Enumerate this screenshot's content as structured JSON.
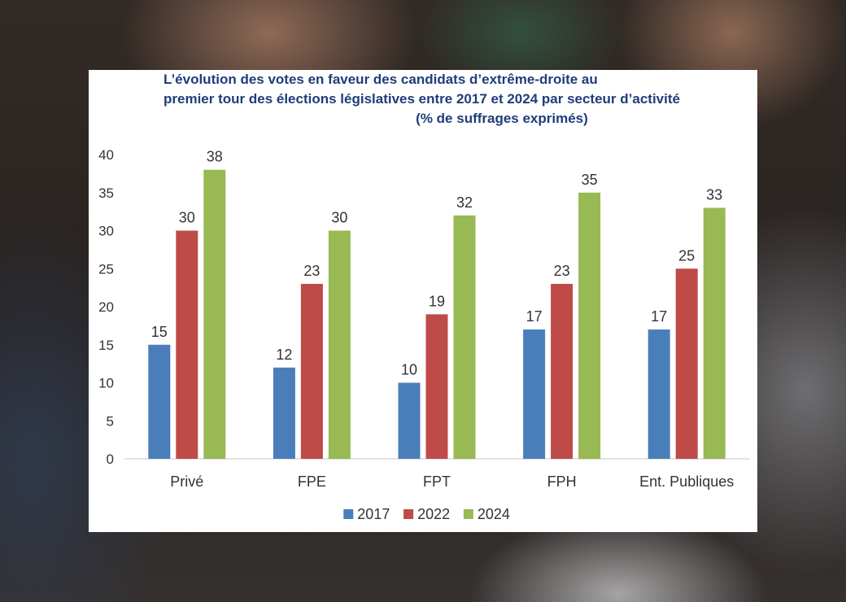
{
  "chart_data": {
    "type": "bar",
    "title": {
      "line1": "L’évolution des votes en faveur des candidats d’extrême-droite au",
      "line2": "premier tour des élections législatives entre 2017 et 2024 par secteur d’activité",
      "line3": "(% de suffrages exprimés)"
    },
    "categories": [
      "Privé",
      "FPE",
      "FPT",
      "FPH",
      "Ent. Publiques"
    ],
    "series": [
      {
        "name": "2017",
        "color": "#4a7ebb",
        "values": [
          15,
          12,
          10,
          17,
          17
        ]
      },
      {
        "name": "2022",
        "color": "#be4b48",
        "values": [
          30,
          23,
          19,
          23,
          25
        ]
      },
      {
        "name": "2024",
        "color": "#98b954",
        "values": [
          38,
          30,
          32,
          35,
          33
        ]
      }
    ],
    "ylim": [
      0,
      40
    ],
    "yticks": [
      "0",
      "5",
      "10",
      "15",
      "20",
      "25",
      "30",
      "35",
      "40"
    ],
    "grid": false,
    "data_labels": true,
    "legend": "bottom"
  }
}
